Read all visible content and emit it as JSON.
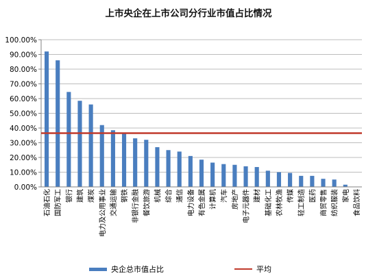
{
  "chart_data": {
    "type": "bar",
    "title": "上市央企在上市公司分行业市值占比情况",
    "xlabel": "",
    "ylabel": "",
    "ylim": [
      0,
      100
    ],
    "yticks": [
      "0.00%",
      "10.00%",
      "20.00%",
      "30.00%",
      "40.00%",
      "50.00%",
      "60.00%",
      "70.00%",
      "80.00%",
      "90.00%",
      "100.00%"
    ],
    "grid": true,
    "legend_position": "bottom",
    "categories": [
      "石油石化",
      "国防军工",
      "银行",
      "建筑",
      "煤炭",
      "电力及公用事业",
      "交通运输",
      "钢铁",
      "非银行金融",
      "餐饮旅游",
      "机械",
      "综合",
      "通信",
      "电力设备",
      "有色金属",
      "计算机",
      "汽车",
      "房地产",
      "电子元器件",
      "建材",
      "基础化工",
      "农林牧渔",
      "传媒",
      "轻工制造",
      "医药",
      "商贸零售",
      "纺织服装",
      "家电",
      "食品饮料"
    ],
    "series": [
      {
        "name": "央企总市值占比",
        "type": "bar",
        "color": "#4a7ebf",
        "values": [
          92.0,
          86.0,
          64.5,
          58.5,
          56.0,
          42.0,
          38.5,
          36.5,
          33.0,
          32.0,
          27.0,
          25.0,
          24.0,
          21.0,
          18.5,
          16.5,
          15.5,
          15.0,
          14.0,
          13.5,
          11.0,
          10.0,
          9.5,
          7.5,
          7.5,
          5.5,
          5.0,
          1.5,
          0.0
        ]
      },
      {
        "name": "平均",
        "type": "line",
        "color": "#c0392b",
        "value": 36.5
      }
    ]
  }
}
